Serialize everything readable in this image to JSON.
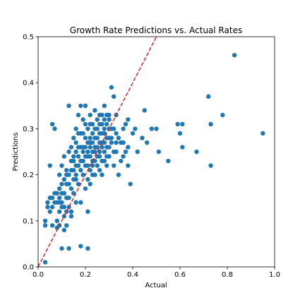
{
  "chart_data": {
    "type": "scatter",
    "title": "Growth Rate Predictions vs. Actual Rates",
    "xlabel": "Actual",
    "ylabel": "Predictions",
    "xlim": [
      0.0,
      1.0
    ],
    "ylim": [
      0.0,
      0.5
    ],
    "xticks": [
      "0.0",
      "0.2",
      "0.4",
      "0.6",
      "0.8",
      "1.0"
    ],
    "yticks": [
      "0.0",
      "0.1",
      "0.2",
      "0.3",
      "0.4",
      "0.5"
    ],
    "grid": false,
    "point_color": "#1f77b4",
    "reference_line": {
      "style": "dashed",
      "color": "#d62728",
      "slope": 1,
      "intercept": 0
    },
    "points": [
      [
        0.03,
        0.01
      ],
      [
        0.03,
        0.09
      ],
      [
        0.03,
        0.1
      ],
      [
        0.04,
        0.13
      ],
      [
        0.04,
        0.14
      ],
      [
        0.05,
        0.12
      ],
      [
        0.05,
        0.22
      ],
      [
        0.06,
        0.31
      ],
      [
        0.06,
        0.15
      ],
      [
        0.06,
        0.13
      ],
      [
        0.07,
        0.3
      ],
      [
        0.07,
        0.14
      ],
      [
        0.07,
        0.16
      ],
      [
        0.08,
        0.1
      ],
      [
        0.08,
        0.16
      ],
      [
        0.08,
        0.085
      ],
      [
        0.09,
        0.09
      ],
      [
        0.09,
        0.17
      ],
      [
        0.09,
        0.15
      ],
      [
        0.1,
        0.22
      ],
      [
        0.1,
        0.04
      ],
      [
        0.1,
        0.14
      ],
      [
        0.11,
        0.13
      ],
      [
        0.11,
        0.24
      ],
      [
        0.11,
        0.08
      ],
      [
        0.12,
        0.09
      ],
      [
        0.12,
        0.12
      ],
      [
        0.12,
        0.18
      ],
      [
        0.13,
        0.04
      ],
      [
        0.13,
        0.15
      ],
      [
        0.13,
        0.2
      ],
      [
        0.13,
        0.25
      ],
      [
        0.13,
        0.35
      ],
      [
        0.14,
        0.21
      ],
      [
        0.14,
        0.26
      ],
      [
        0.14,
        0.11
      ],
      [
        0.15,
        0.19
      ],
      [
        0.15,
        0.23
      ],
      [
        0.15,
        0.16
      ],
      [
        0.16,
        0.27
      ],
      [
        0.16,
        0.2
      ],
      [
        0.16,
        0.22
      ],
      [
        0.16,
        0.3
      ],
      [
        0.17,
        0.18
      ],
      [
        0.17,
        0.24
      ],
      [
        0.17,
        0.33
      ],
      [
        0.18,
        0.35
      ],
      [
        0.18,
        0.21
      ],
      [
        0.18,
        0.29
      ],
      [
        0.18,
        0.14
      ],
      [
        0.18,
        0.045
      ],
      [
        0.19,
        0.26
      ],
      [
        0.19,
        0.25
      ],
      [
        0.19,
        0.32
      ],
      [
        0.2,
        0.22
      ],
      [
        0.2,
        0.28
      ],
      [
        0.2,
        0.17
      ],
      [
        0.21,
        0.3
      ],
      [
        0.21,
        0.24
      ],
      [
        0.21,
        0.19
      ],
      [
        0.21,
        0.12
      ],
      [
        0.21,
        0.04
      ],
      [
        0.22,
        0.27
      ],
      [
        0.22,
        0.33
      ],
      [
        0.22,
        0.21
      ],
      [
        0.22,
        0.31
      ],
      [
        0.23,
        0.25
      ],
      [
        0.23,
        0.29
      ],
      [
        0.23,
        0.23
      ],
      [
        0.24,
        0.3
      ],
      [
        0.24,
        0.34
      ],
      [
        0.24,
        0.2
      ],
      [
        0.24,
        0.26
      ],
      [
        0.25,
        0.28
      ],
      [
        0.25,
        0.32
      ],
      [
        0.25,
        0.22
      ],
      [
        0.26,
        0.29
      ],
      [
        0.26,
        0.24
      ],
      [
        0.26,
        0.31
      ],
      [
        0.27,
        0.27
      ],
      [
        0.27,
        0.33
      ],
      [
        0.27,
        0.23
      ],
      [
        0.27,
        0.2
      ],
      [
        0.28,
        0.3
      ],
      [
        0.28,
        0.25
      ],
      [
        0.28,
        0.35
      ],
      [
        0.29,
        0.22
      ],
      [
        0.29,
        0.28
      ],
      [
        0.29,
        0.31
      ],
      [
        0.3,
        0.26
      ],
      [
        0.3,
        0.32
      ],
      [
        0.3,
        0.24
      ],
      [
        0.31,
        0.39
      ],
      [
        0.31,
        0.28
      ],
      [
        0.32,
        0.37
      ],
      [
        0.32,
        0.3
      ],
      [
        0.32,
        0.22
      ],
      [
        0.33,
        0.29
      ],
      [
        0.33,
        0.25
      ],
      [
        0.34,
        0.2
      ],
      [
        0.35,
        0.27
      ],
      [
        0.36,
        0.3
      ],
      [
        0.36,
        0.24
      ],
      [
        0.37,
        0.31
      ],
      [
        0.38,
        0.32
      ],
      [
        0.38,
        0.22
      ],
      [
        0.39,
        0.18
      ],
      [
        0.4,
        0.29
      ],
      [
        0.41,
        0.3
      ],
      [
        0.42,
        0.25
      ],
      [
        0.44,
        0.28
      ],
      [
        0.45,
        0.34
      ],
      [
        0.46,
        0.27
      ],
      [
        0.48,
        0.3
      ],
      [
        0.5,
        0.3
      ],
      [
        0.51,
        0.25
      ],
      [
        0.55,
        0.23
      ],
      [
        0.59,
        0.31
      ],
      [
        0.6,
        0.29
      ],
      [
        0.61,
        0.26
      ],
      [
        0.61,
        0.31
      ],
      [
        0.67,
        0.25
      ],
      [
        0.72,
        0.37
      ],
      [
        0.73,
        0.31
      ],
      [
        0.73,
        0.22
      ],
      [
        0.78,
        0.33
      ],
      [
        0.83,
        0.46
      ],
      [
        0.95,
        0.29
      ],
      [
        0.14,
        0.12
      ],
      [
        0.15,
        0.28
      ],
      [
        0.16,
        0.14
      ],
      [
        0.17,
        0.22
      ],
      [
        0.19,
        0.29
      ],
      [
        0.2,
        0.35
      ],
      [
        0.2,
        0.24
      ],
      [
        0.22,
        0.18
      ],
      [
        0.23,
        0.31
      ],
      [
        0.24,
        0.23
      ],
      [
        0.25,
        0.26
      ],
      [
        0.26,
        0.21
      ],
      [
        0.26,
        0.33
      ],
      [
        0.27,
        0.29
      ],
      [
        0.28,
        0.27
      ],
      [
        0.29,
        0.24
      ],
      [
        0.3,
        0.3
      ],
      [
        0.31,
        0.27
      ],
      [
        0.12,
        0.2
      ],
      [
        0.11,
        0.16
      ],
      [
        0.1,
        0.18
      ],
      [
        0.09,
        0.2
      ],
      [
        0.08,
        0.14
      ],
      [
        0.19,
        0.2
      ],
      [
        0.18,
        0.26
      ],
      [
        0.17,
        0.29
      ],
      [
        0.24,
        0.28
      ],
      [
        0.23,
        0.27
      ],
      [
        0.22,
        0.24
      ],
      [
        0.21,
        0.27
      ],
      [
        0.2,
        0.31
      ],
      [
        0.33,
        0.33
      ],
      [
        0.34,
        0.28
      ],
      [
        0.35,
        0.23
      ],
      [
        0.21,
        0.22
      ],
      [
        0.22,
        0.28
      ],
      [
        0.23,
        0.2
      ],
      [
        0.25,
        0.3
      ],
      [
        0.26,
        0.27
      ],
      [
        0.28,
        0.23
      ],
      [
        0.29,
        0.26
      ],
      [
        0.3,
        0.28
      ],
      [
        0.15,
        0.24
      ],
      [
        0.16,
        0.25
      ],
      [
        0.14,
        0.17
      ],
      [
        0.13,
        0.13
      ],
      [
        0.12,
        0.15
      ],
      [
        0.11,
        0.11
      ],
      [
        0.1,
        0.13
      ],
      [
        0.09,
        0.12
      ],
      [
        0.06,
        0.09
      ],
      [
        0.05,
        0.15
      ],
      [
        0.27,
        0.26
      ],
      [
        0.28,
        0.32
      ],
      [
        0.26,
        0.25
      ],
      [
        0.25,
        0.24
      ],
      [
        0.24,
        0.25
      ],
      [
        0.23,
        0.22
      ],
      [
        0.22,
        0.26
      ],
      [
        0.21,
        0.25
      ],
      [
        0.2,
        0.26
      ],
      [
        0.19,
        0.23
      ],
      [
        0.18,
        0.23
      ],
      [
        0.17,
        0.26
      ],
      [
        0.16,
        0.19
      ],
      [
        0.15,
        0.21
      ],
      [
        0.14,
        0.23
      ],
      [
        0.13,
        0.18
      ],
      [
        0.12,
        0.21
      ],
      [
        0.11,
        0.19
      ],
      [
        0.1,
        0.16
      ],
      [
        0.09,
        0.14
      ],
      [
        0.3,
        0.33
      ],
      [
        0.31,
        0.3
      ],
      [
        0.32,
        0.25
      ],
      [
        0.33,
        0.27
      ],
      [
        0.36,
        0.27
      ],
      [
        0.37,
        0.25
      ],
      [
        0.38,
        0.26
      ],
      [
        0.29,
        0.33
      ],
      [
        0.28,
        0.29
      ],
      [
        0.27,
        0.31
      ]
    ]
  }
}
